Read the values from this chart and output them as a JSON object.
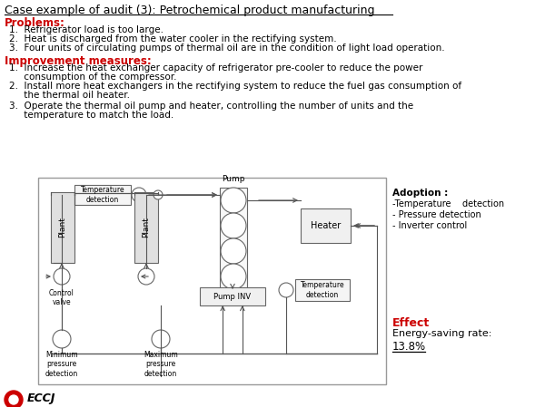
{
  "title": "Case example of audit (3): Petrochemical product manufacturing",
  "problems_label": "Problems:",
  "problems": [
    "1.  Refrigerator load is too large.",
    "2.  Heat is discharged from the water cooler in the rectifying system.",
    "3.  Four units of circulating pumps of thermal oil are in the condition of light load operation."
  ],
  "improvement_label": "Improvement measures:",
  "improvements": [
    [
      "1.  Increase the heat exchanger capacity of refrigerator pre-cooler to reduce the power",
      "     consumption of the compressor."
    ],
    [
      "2.  Install more heat exchangers in the rectifying system to reduce the fuel gas consumption of",
      "     the thermal oil heater."
    ],
    [
      "3.  Operate the thermal oil pump and heater, controlling the number of units and the",
      "     temperature to match the load."
    ]
  ],
  "adoption_label": "Adoption :",
  "adoption_items": [
    "-Temperature    detection",
    "- Pressure detection",
    "- Inverter control"
  ],
  "effect_label": "Effect",
  "effect_text": "Energy-saving rate:",
  "effect_value": "13.8%",
  "red_color": "#cc0000",
  "black_color": "#000000",
  "bg_color": "#ffffff",
  "diagram_border_color": "#999999",
  "box_stroke": "#666666",
  "line_color": "#555555"
}
